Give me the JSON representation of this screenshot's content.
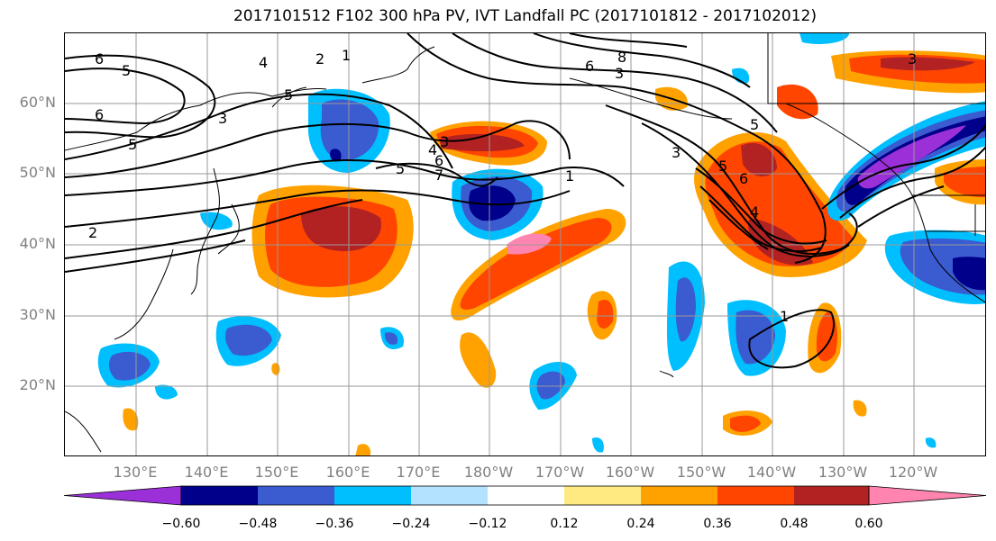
{
  "title": "2017101512 F102 300 hPa PV, IVT Landfall PC (2017101812 - 2017102012)",
  "map": {
    "lat_labels": [
      "60°N",
      "50°N",
      "40°N",
      "30°N",
      "20°N"
    ],
    "lon_labels": [
      "130°E",
      "140°E",
      "150°E",
      "160°E",
      "170°E",
      "180°W",
      "170°W",
      "160°W",
      "150°W",
      "140°W",
      "130°W",
      "120°W"
    ],
    "contour_labels": [
      "6",
      "5",
      "6",
      "5",
      "4",
      "2",
      "1",
      "2",
      "3",
      "5",
      "5",
      "8",
      "6",
      "3",
      "3",
      "4",
      "6",
      "7",
      "5",
      "3",
      "5",
      "6",
      "4",
      "1",
      "3",
      "1"
    ],
    "colors": {
      "purple": "#9b30d9",
      "navy": "#00008b",
      "blue": "#3b5bd0",
      "cyan": "#00bfff",
      "lightblue": "#b3e2ff",
      "yellow": "#ffea82",
      "orange": "#ffa200",
      "redorange": "#ff4500",
      "darkred": "#b22222",
      "pink": "#ff85b0"
    }
  },
  "colorbar": {
    "ticks": [
      "−0.60",
      "−0.48",
      "−0.36",
      "−0.24",
      "−0.12",
      "0.12",
      "0.24",
      "0.36",
      "0.48",
      "0.60"
    ],
    "colors": [
      "#9b30d9",
      "#00008b",
      "#3b5bd0",
      "#00bfff",
      "#b3e2ff",
      "#ffffff",
      "#ffea82",
      "#ffa200",
      "#ff4500",
      "#b22222",
      "#ff85b0"
    ]
  }
}
